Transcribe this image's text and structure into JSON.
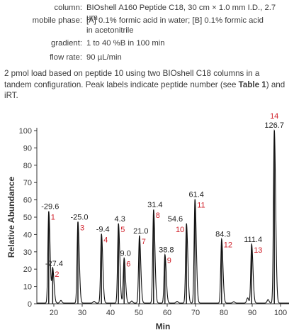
{
  "conditions": [
    {
      "label": "column:",
      "value": "BIOshell A160 Peptide C18, 30 cm × 1.0 mm I.D., 2.7 µm"
    },
    {
      "label": "mobile phase:",
      "value": "[A] 0.1% formic acid in water; [B] 0.1% formic acid",
      "value2": "in acetonitrile"
    },
    {
      "label": "gradient:",
      "value": "1 to 40 %B in 100 min"
    },
    {
      "label": "flow rate:",
      "value": "90 µL/min"
    }
  ],
  "description": {
    "text1": "2 pmol load based on peptide 10 using two BIOshell C18 columns in a tandem configuration. Peak labels indicate peptide number (see ",
    "link": "Table 1",
    "text2": ") and iRT."
  },
  "colors": {
    "axis": "#333333",
    "trace": "#111111",
    "peak_number": "#d0202a",
    "text": "#3a3a3a"
  },
  "chart_data": {
    "type": "line",
    "xlabel": "Min",
    "ylabel": "Relative Abundance",
    "xlim": [
      14,
      103
    ],
    "ylim": [
      0,
      100
    ],
    "xticks": [
      20,
      30,
      40,
      50,
      60,
      70,
      80,
      90,
      100
    ],
    "yticks": [
      0,
      10,
      20,
      30,
      40,
      50,
      60,
      70,
      80,
      90,
      100
    ],
    "peaks": [
      {
        "peptide": "1",
        "irt": "-29.6",
        "time": 18.2,
        "height": 53
      },
      {
        "peptide": "2",
        "irt": "-27.4",
        "time": 19.6,
        "height": 20
      },
      {
        "peptide": "3",
        "irt": "-25.0",
        "time": 28.5,
        "height": 47
      },
      {
        "peptide": "4",
        "irt": "-9.4",
        "time": 36.8,
        "height": 40
      },
      {
        "peptide": "5",
        "irt": "4.3",
        "time": 42.8,
        "height": 46
      },
      {
        "peptide": "6",
        "irt": "9.0",
        "time": 44.8,
        "height": 26
      },
      {
        "peptide": "7",
        "irt": "21.0",
        "time": 50.2,
        "height": 39
      },
      {
        "peptide": "8",
        "irt": "31.4",
        "time": 55.2,
        "height": 54
      },
      {
        "peptide": "9",
        "irt": "38.8",
        "time": 59.2,
        "height": 28
      },
      {
        "peptide": "10",
        "irt": "54.6",
        "time": 66.8,
        "height": 46
      },
      {
        "peptide": "11",
        "irt": "61.4",
        "time": 69.8,
        "height": 60
      },
      {
        "peptide": "12",
        "irt": "84.3",
        "time": 79.2,
        "height": 37
      },
      {
        "peptide": "13",
        "irt": "111.4",
        "time": 89.8,
        "height": 34
      },
      {
        "peptide": "14",
        "irt": "126.7",
        "time": 97.8,
        "height": 100
      }
    ]
  }
}
